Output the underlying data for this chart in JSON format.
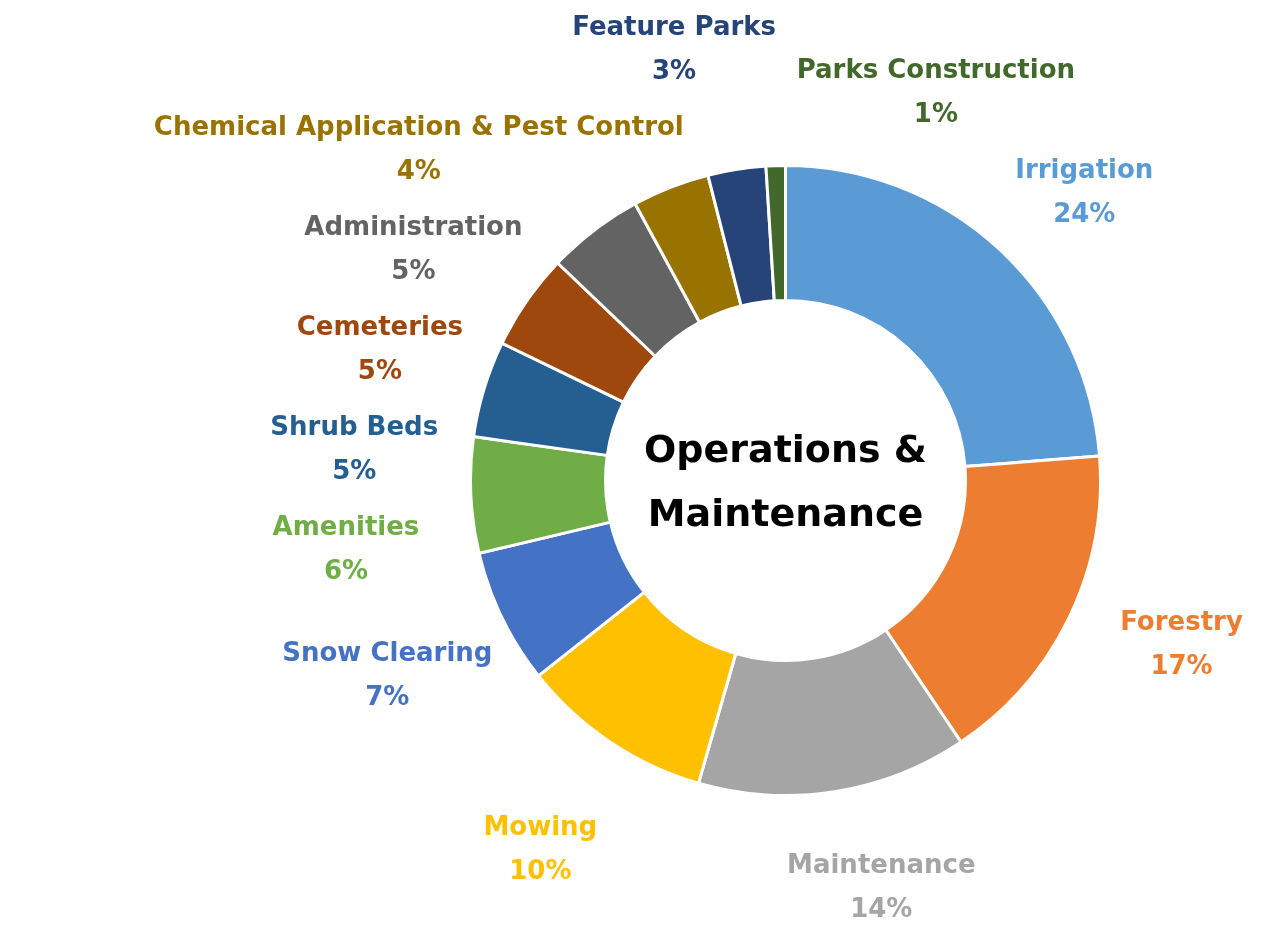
{
  "chart_data": {
    "type": "donut",
    "title": "Operations & Maintenance",
    "categories": [
      "Irrigation",
      "Forestry",
      "Maintenance",
      "Mowing",
      "Snow Clearing",
      "Amenities",
      "Shrub Beds",
      "Cemeteries",
      "Administration",
      "Chemical Application & Pest Control",
      "Feature Parks",
      "Parks Construction"
    ],
    "values": [
      24,
      17,
      14,
      10,
      7,
      6,
      5,
      5,
      5,
      4,
      3,
      1
    ],
    "value_labels": [
      "24%",
      "17%",
      "14%",
      "10%",
      "7%",
      "6%",
      "5%",
      "5%",
      "5%",
      "4%",
      "3%",
      "1%"
    ],
    "colors": [
      "#5b9bd5",
      "#ed7d31",
      "#a5a5a5",
      "#ffc000",
      "#4472c4",
      "#70ad47",
      "#255e91",
      "#9e480e",
      "#636363",
      "#997300",
      "#264478",
      "#43682b"
    ]
  }
}
